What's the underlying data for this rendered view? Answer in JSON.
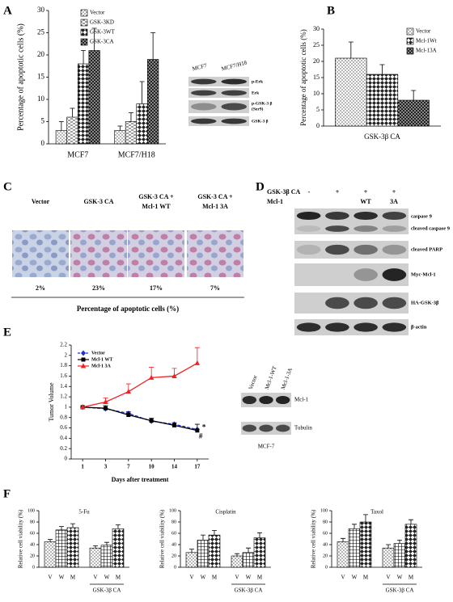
{
  "panel_letters": [
    "A",
    "B",
    "C",
    "D",
    "E",
    "F"
  ],
  "chart_data": [
    {
      "type": "bar",
      "y_label": "Percentage of apoptotic cells (%)",
      "categories": [
        "MCF7",
        "MCF7/H18"
      ],
      "series": [
        {
          "name": "Vector",
          "pattern": "dots",
          "values": [
            3,
            3
          ],
          "errors": [
            2,
            1
          ]
        },
        {
          "name": "GSK-3KD",
          "pattern": "dashes",
          "values": [
            6,
            5
          ],
          "errors": [
            2,
            2
          ]
        },
        {
          "name": "GSK-3WT",
          "pattern": "diamond",
          "values": [
            18,
            9
          ],
          "errors": [
            3,
            5
          ]
        },
        {
          "name": "GSK-3CA",
          "pattern": "dark",
          "values": [
            21,
            19
          ],
          "errors": [
            5,
            6
          ]
        }
      ],
      "ylim": [
        0,
        30
      ],
      "yticks": [
        0,
        5,
        10,
        15,
        20,
        25,
        30
      ],
      "legend": "upper left"
    },
    {
      "type": "bar",
      "y_label": "Percentage of apoptotic cells (%)",
      "categories": [
        "GSK-3β CA"
      ],
      "series": [
        {
          "name": "Vector",
          "pattern": "dots",
          "values": [
            21
          ],
          "errors": [
            5
          ]
        },
        {
          "name": "Mcl-1Wt",
          "pattern": "diamond",
          "values": [
            16
          ],
          "errors": [
            3
          ]
        },
        {
          "name": "Mcl-13A",
          "pattern": "dark",
          "values": [
            8
          ],
          "errors": [
            3
          ]
        }
      ],
      "ylim": [
        0,
        30
      ],
      "yticks": [
        0,
        5,
        10,
        15,
        20,
        25,
        30
      ],
      "legend": "upper right"
    },
    {
      "type": "line",
      "y_label": "Tumor Volume",
      "x_label": "Days after treatment",
      "categories": [
        "1",
        "3",
        "7",
        "10",
        "14",
        "17"
      ],
      "series": [
        {
          "name": "Vector",
          "color": "#2233cc",
          "marker": "diamond",
          "dashed": true,
          "values": [
            1,
            0.97,
            0.88,
            0.73,
            0.67,
            0.57
          ]
        },
        {
          "name": "Mcl-1 WT",
          "color": "#000000",
          "marker": "square",
          "dashed": false,
          "values": [
            1,
            0.98,
            0.85,
            0.74,
            0.65,
            0.55
          ],
          "errors": [
            0,
            0.05,
            0.06,
            0.05,
            0.05,
            0.12
          ]
        },
        {
          "name": "Mcl-1 3A",
          "color": "#ee2222",
          "marker": "triangle",
          "dashed": false,
          "values": [
            1,
            1.1,
            1.3,
            1.57,
            1.6,
            1.85
          ],
          "errors": [
            0,
            0.08,
            0.15,
            0.2,
            0.15,
            0.3
          ]
        }
      ],
      "annotations": [
        "*",
        "#"
      ],
      "ylim": [
        0,
        2.2
      ],
      "yticks": [
        0,
        0.2,
        0.4,
        0.6,
        0.8,
        1,
        1.2,
        1.4,
        1.6,
        1.8,
        2,
        2.2
      ],
      "legend": "upper left"
    },
    {
      "type": "bar",
      "title": "5-Fu",
      "y_label": "Relative cell viability (%)",
      "categories": [
        "V",
        "W",
        "M",
        "V",
        "W",
        "M"
      ],
      "values": [
        45,
        66,
        70,
        34,
        39,
        68
      ],
      "errors": [
        4,
        6,
        7,
        4,
        5,
        7
      ],
      "patterns": [
        "dots",
        "grid",
        "diamond",
        "dots",
        "grid",
        "diamond"
      ],
      "group_label": "GSK-3β CA",
      "ylim": [
        0,
        100
      ],
      "yticks": [
        0,
        20,
        40,
        60,
        80,
        100
      ]
    },
    {
      "type": "bar",
      "title": "Cisplatin",
      "y_label": "Relative cell viability (%)",
      "categories": [
        "V",
        "W",
        "M",
        "V",
        "W",
        "M"
      ],
      "values": [
        26,
        48,
        57,
        20,
        26,
        52
      ],
      "errors": [
        6,
        9,
        8,
        4,
        8,
        9
      ],
      "patterns": [
        "dots",
        "grid",
        "diamond",
        "dots",
        "grid",
        "diamond"
      ],
      "group_label": "GSK-3β CA",
      "ylim": [
        0,
        100
      ],
      "yticks": [
        0,
        20,
        40,
        60,
        80,
        100
      ]
    },
    {
      "type": "bar",
      "title": "Taxol",
      "y_label": "Relative cell viability (%)",
      "categories": [
        "V",
        "W",
        "M",
        "V",
        "W",
        "M"
      ],
      "values": [
        45,
        68,
        80,
        34,
        42,
        76
      ],
      "errors": [
        6,
        8,
        13,
        6,
        6,
        8
      ],
      "patterns": [
        "dots",
        "grid",
        "diamond",
        "dots",
        "grid",
        "diamond"
      ],
      "group_label": "GSK-3β CA",
      "ylim": [
        0,
        100
      ],
      "yticks": [
        0,
        20,
        40,
        60,
        80,
        100
      ]
    }
  ],
  "blot_a": {
    "lanes": [
      "MCF7",
      "MCF7/H18"
    ],
    "bands": [
      "p-Erk",
      "Erk",
      "p-GSK-3 β",
      "(Ser9)",
      "GSK-3 β"
    ]
  },
  "panel_c": {
    "columns": [
      [
        "Vector"
      ],
      [
        "GSK-3 CA"
      ],
      [
        "GSK-3 CA +",
        "Mcl-1 WT"
      ],
      [
        "GSK-3 CA +",
        "Mcl-1 3A"
      ]
    ],
    "percents": [
      "2%",
      "23%",
      "17%",
      "7%"
    ],
    "caption": "Percentage of apoptotic cells (%)"
  },
  "blot_d": {
    "rows": [
      {
        "label": "GSK-3β CA",
        "lanes": [
          "-",
          "+",
          "+",
          "+"
        ]
      },
      {
        "label": "Mcl-1",
        "lanes": [
          null,
          null,
          "WT",
          "3A"
        ]
      }
    ],
    "bands": [
      "caspase 9",
      "cleaved  caspase 9",
      "cleaved PARP",
      "Myc-Mcl-1",
      "HA-GSK-3β",
      "β-actin"
    ]
  },
  "blot_e": {
    "lanes": [
      "Vector",
      "Mcl-1-WT",
      "Mcl-1-3A"
    ],
    "bands": [
      "Mcl-1",
      "Tubulin"
    ],
    "caption": "MCF-7"
  }
}
